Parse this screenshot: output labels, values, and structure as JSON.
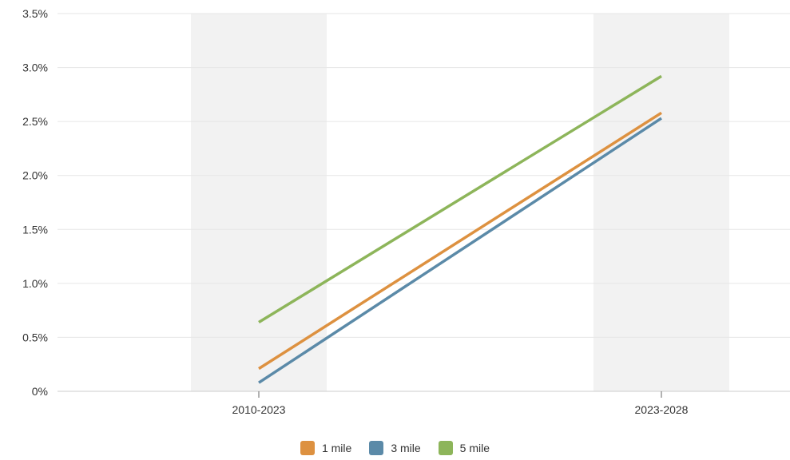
{
  "chart_data": {
    "type": "line",
    "categories": [
      "2010-2023",
      "2023-2028"
    ],
    "series": [
      {
        "name": "1 mile",
        "color": "#dd9140",
        "values": [
          0.21,
          2.58
        ]
      },
      {
        "name": "3 mile",
        "color": "#5b8aa8",
        "values": [
          0.08,
          2.53
        ]
      },
      {
        "name": "5 mile",
        "color": "#8db55a",
        "values": [
          0.64,
          2.92
        ]
      }
    ],
    "y_ticks": [
      "0%",
      "0.5%",
      "1.0%",
      "1.5%",
      "2.0%",
      "2.5%",
      "3.0%",
      "3.5%"
    ],
    "ylim": [
      0,
      3.5
    ],
    "grid": true,
    "legend_position": "bottom-center",
    "band_color": "#f2f2f2",
    "grid_color": "#e6e6e6"
  }
}
